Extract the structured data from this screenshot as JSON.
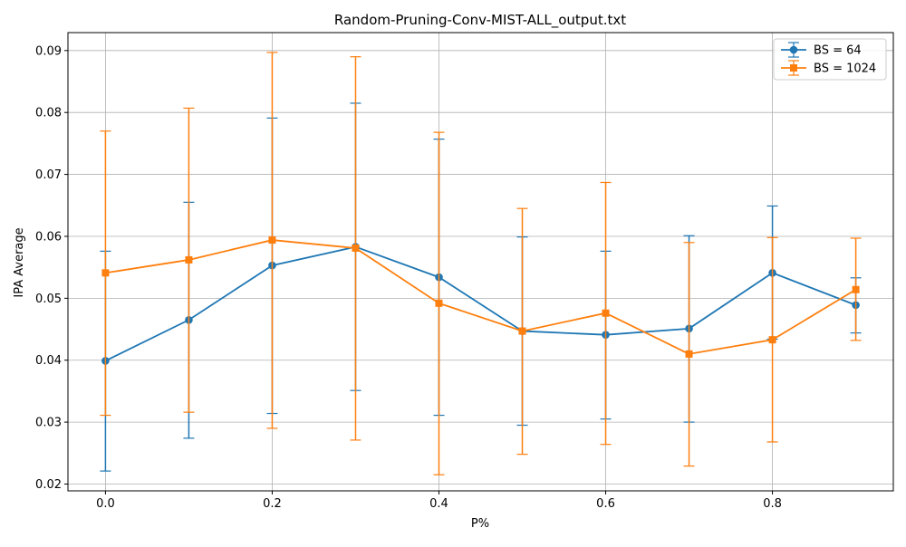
{
  "chart_data": {
    "type": "line",
    "title": "Random-Pruning-Conv-MIST-ALL_output.txt",
    "xlabel": "P%",
    "ylabel": "IPA Average",
    "x": [
      0.0,
      0.1,
      0.2,
      0.3,
      0.4,
      0.5,
      0.6,
      0.7,
      0.8,
      0.9
    ],
    "xlim": [
      -0.045,
      0.945
    ],
    "ylim": [
      0.0189,
      0.0929
    ],
    "xticks": [
      "0.0",
      "0.2",
      "0.4",
      "0.6",
      "0.8"
    ],
    "xtick_values": [
      0.0,
      0.2,
      0.4,
      0.6,
      0.8
    ],
    "yticks": [
      "0.02",
      "0.03",
      "0.04",
      "0.05",
      "0.06",
      "0.07",
      "0.08",
      "0.09"
    ],
    "ytick_values": [
      0.02,
      0.03,
      0.04,
      0.05,
      0.06,
      0.07,
      0.08,
      0.09
    ],
    "grid": true,
    "legend_position": "top-right",
    "series": [
      {
        "name": "BS = 64",
        "color": "#1f77b4",
        "marker": "circle",
        "values": [
          0.0399,
          0.0465,
          0.0553,
          0.0583,
          0.0534,
          0.0447,
          0.0441,
          0.0451,
          0.0541,
          0.0489
        ],
        "err_low": [
          0.0221,
          0.0274,
          0.0314,
          0.0351,
          0.0311,
          0.0295,
          0.0305,
          0.03,
          0.0434,
          0.0444
        ],
        "err_high": [
          0.0576,
          0.0655,
          0.0791,
          0.0815,
          0.0757,
          0.0599,
          0.0576,
          0.0601,
          0.0649,
          0.0533
        ]
      },
      {
        "name": "BS = 1024",
        "color": "#ff7f0e",
        "marker": "square",
        "values": [
          0.0541,
          0.0562,
          0.0594,
          0.0581,
          0.0492,
          0.0447,
          0.0476,
          0.041,
          0.0433,
          0.0514
        ],
        "err_low": [
          0.0311,
          0.0316,
          0.029,
          0.0271,
          0.0215,
          0.0248,
          0.0264,
          0.0229,
          0.0268,
          0.0432
        ],
        "err_high": [
          0.077,
          0.0807,
          0.0897,
          0.089,
          0.0768,
          0.0645,
          0.0687,
          0.059,
          0.0598,
          0.0597
        ]
      }
    ]
  }
}
